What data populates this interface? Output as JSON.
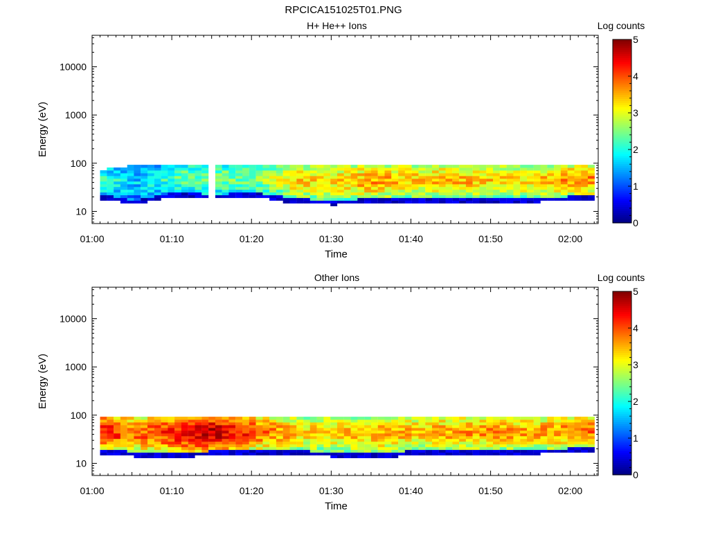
{
  "figure_title": "RPCICA151025T01.PNG",
  "colorbar": {
    "label": "Log counts",
    "ticks": [
      "0",
      "1",
      "2",
      "3",
      "4",
      "5"
    ],
    "colormap": "jet"
  },
  "chart_data": [
    {
      "type": "heatmap",
      "title": "H+ He++ Ions",
      "xlabel": "Time",
      "ylabel": "Energy (eV)",
      "x_tick_labels": [
        "01:00",
        "01:10",
        "01:20",
        "01:30",
        "01:40",
        "01:50",
        "02:00"
      ],
      "y_tick_labels": [
        "10",
        "100",
        "1000",
        "10000"
      ],
      "y_scale": "log",
      "ylim_eV": [
        5.6,
        45000
      ],
      "xlim_minutes_after_0100": [
        0,
        63.5
      ],
      "zlim_log_counts": [
        0,
        5
      ],
      "grid": false,
      "legend": "colorbar right",
      "energy_band_eV": [
        10,
        100
      ],
      "intensity_profile": [
        {
          "time": "01:01",
          "min_eV": 18,
          "max_eV": 75,
          "peak_log_counts": 2.2
        },
        {
          "time": "01:05",
          "min_eV": 14,
          "max_eV": 90,
          "peak_log_counts": 1.6
        },
        {
          "time": "01:10",
          "min_eV": 20,
          "max_eV": 95,
          "peak_log_counts": 2.3
        },
        {
          "time": "01:15",
          "min_eV": 19,
          "max_eV": 95,
          "peak_log_counts": 2.5
        },
        {
          "time": "01:20",
          "min_eV": 20,
          "max_eV": 95,
          "peak_log_counts": 2.4
        },
        {
          "time": "01:25",
          "min_eV": 15,
          "max_eV": 95,
          "peak_log_counts": 3.3
        },
        {
          "time": "01:30",
          "min_eV": 14,
          "max_eV": 95,
          "peak_log_counts": 3.2
        },
        {
          "time": "01:35",
          "min_eV": 15,
          "max_eV": 95,
          "peak_log_counts": 3.6
        },
        {
          "time": "01:40",
          "min_eV": 16,
          "max_eV": 95,
          "peak_log_counts": 3.3
        },
        {
          "time": "01:45",
          "min_eV": 15,
          "max_eV": 95,
          "peak_log_counts": 3.5
        },
        {
          "time": "01:50",
          "min_eV": 16,
          "max_eV": 95,
          "peak_log_counts": 3.3
        },
        {
          "time": "01:55",
          "min_eV": 16,
          "max_eV": 95,
          "peak_log_counts": 3.3
        },
        {
          "time": "02:00",
          "min_eV": 17,
          "max_eV": 95,
          "peak_log_counts": 3.7
        }
      ]
    },
    {
      "type": "heatmap",
      "title": "Other Ions",
      "xlabel": "Time",
      "ylabel": "Energy (eV)",
      "x_tick_labels": [
        "01:00",
        "01:10",
        "01:20",
        "01:30",
        "01:40",
        "01:50",
        "02:00"
      ],
      "y_tick_labels": [
        "10",
        "100",
        "1000",
        "10000"
      ],
      "y_scale": "log",
      "ylim_eV": [
        5.6,
        45000
      ],
      "xlim_minutes_after_0100": [
        0,
        63.5
      ],
      "zlim_log_counts": [
        0,
        5
      ],
      "grid": false,
      "legend": "colorbar right",
      "energy_band_eV": [
        10,
        100
      ],
      "intensity_profile": [
        {
          "time": "01:01",
          "min_eV": 16,
          "max_eV": 95,
          "peak_log_counts": 4.4
        },
        {
          "time": "01:05",
          "min_eV": 14,
          "max_eV": 95,
          "peak_log_counts": 3.8
        },
        {
          "time": "01:10",
          "min_eV": 13,
          "max_eV": 95,
          "peak_log_counts": 4.2
        },
        {
          "time": "01:15",
          "min_eV": 15,
          "max_eV": 95,
          "peak_log_counts": 4.7
        },
        {
          "time": "01:20",
          "min_eV": 16,
          "max_eV": 95,
          "peak_log_counts": 4.0
        },
        {
          "time": "01:25",
          "min_eV": 15,
          "max_eV": 95,
          "peak_log_counts": 3.4
        },
        {
          "time": "01:30",
          "min_eV": 14,
          "max_eV": 95,
          "peak_log_counts": 3.3
        },
        {
          "time": "01:35",
          "min_eV": 13,
          "max_eV": 95,
          "peak_log_counts": 3.5
        },
        {
          "time": "01:40",
          "min_eV": 15,
          "max_eV": 95,
          "peak_log_counts": 3.4
        },
        {
          "time": "01:45",
          "min_eV": 16,
          "max_eV": 95,
          "peak_log_counts": 3.6
        },
        {
          "time": "01:50",
          "min_eV": 16,
          "max_eV": 95,
          "peak_log_counts": 3.6
        },
        {
          "time": "01:55",
          "min_eV": 16,
          "max_eV": 95,
          "peak_log_counts": 3.5
        },
        {
          "time": "02:00",
          "min_eV": 17,
          "max_eV": 95,
          "peak_log_counts": 3.8
        }
      ]
    }
  ]
}
